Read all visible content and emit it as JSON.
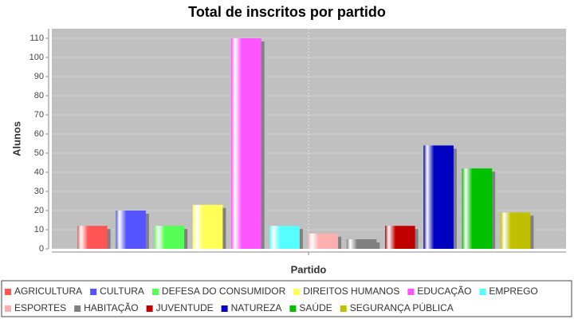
{
  "chart_data": {
    "type": "bar",
    "title": "Total de inscritos por partido",
    "x_label": "Partido",
    "y_label": "Alunos",
    "categories": [
      null
    ],
    "series": [
      {
        "name": "AGRICULTURA",
        "color": "#ff5555",
        "values": [
          12
        ]
      },
      {
        "name": "CULTURA",
        "color": "#5555ff",
        "values": [
          20
        ]
      },
      {
        "name": "DEFESA DO CONSUMIDOR",
        "color": "#55ff55",
        "values": [
          12
        ]
      },
      {
        "name": "DIREITOS HUMANOS",
        "color": "#ffff55",
        "values": [
          23
        ]
      },
      {
        "name": "EDUCAÇÃO",
        "color": "#ff55ff",
        "values": [
          110
        ]
      },
      {
        "name": "EMPREGO",
        "color": "#55ffff",
        "values": [
          12
        ]
      },
      {
        "name": "ESPORTES",
        "color": "#ffafaf",
        "values": [
          8
        ]
      },
      {
        "name": "HABITAÇÃO",
        "color": "#808080",
        "values": [
          5
        ]
      },
      {
        "name": "JUVENTUDE",
        "color": "#c00000",
        "values": [
          12
        ]
      },
      {
        "name": "NATUREZA",
        "color": "#0000c0",
        "values": [
          54
        ]
      },
      {
        "name": "SAÚDE",
        "color": "#00c000",
        "values": [
          42
        ]
      },
      {
        "name": "SEGURANÇA PÚBLICA",
        "color": "#c0c000",
        "values": [
          19
        ]
      }
    ],
    "ylim": [
      0,
      115
    ],
    "yticks": [
      0,
      10,
      20,
      30,
      40,
      50,
      60,
      70,
      80,
      90,
      100,
      110
    ],
    "grid": true,
    "legend": "bottom"
  }
}
